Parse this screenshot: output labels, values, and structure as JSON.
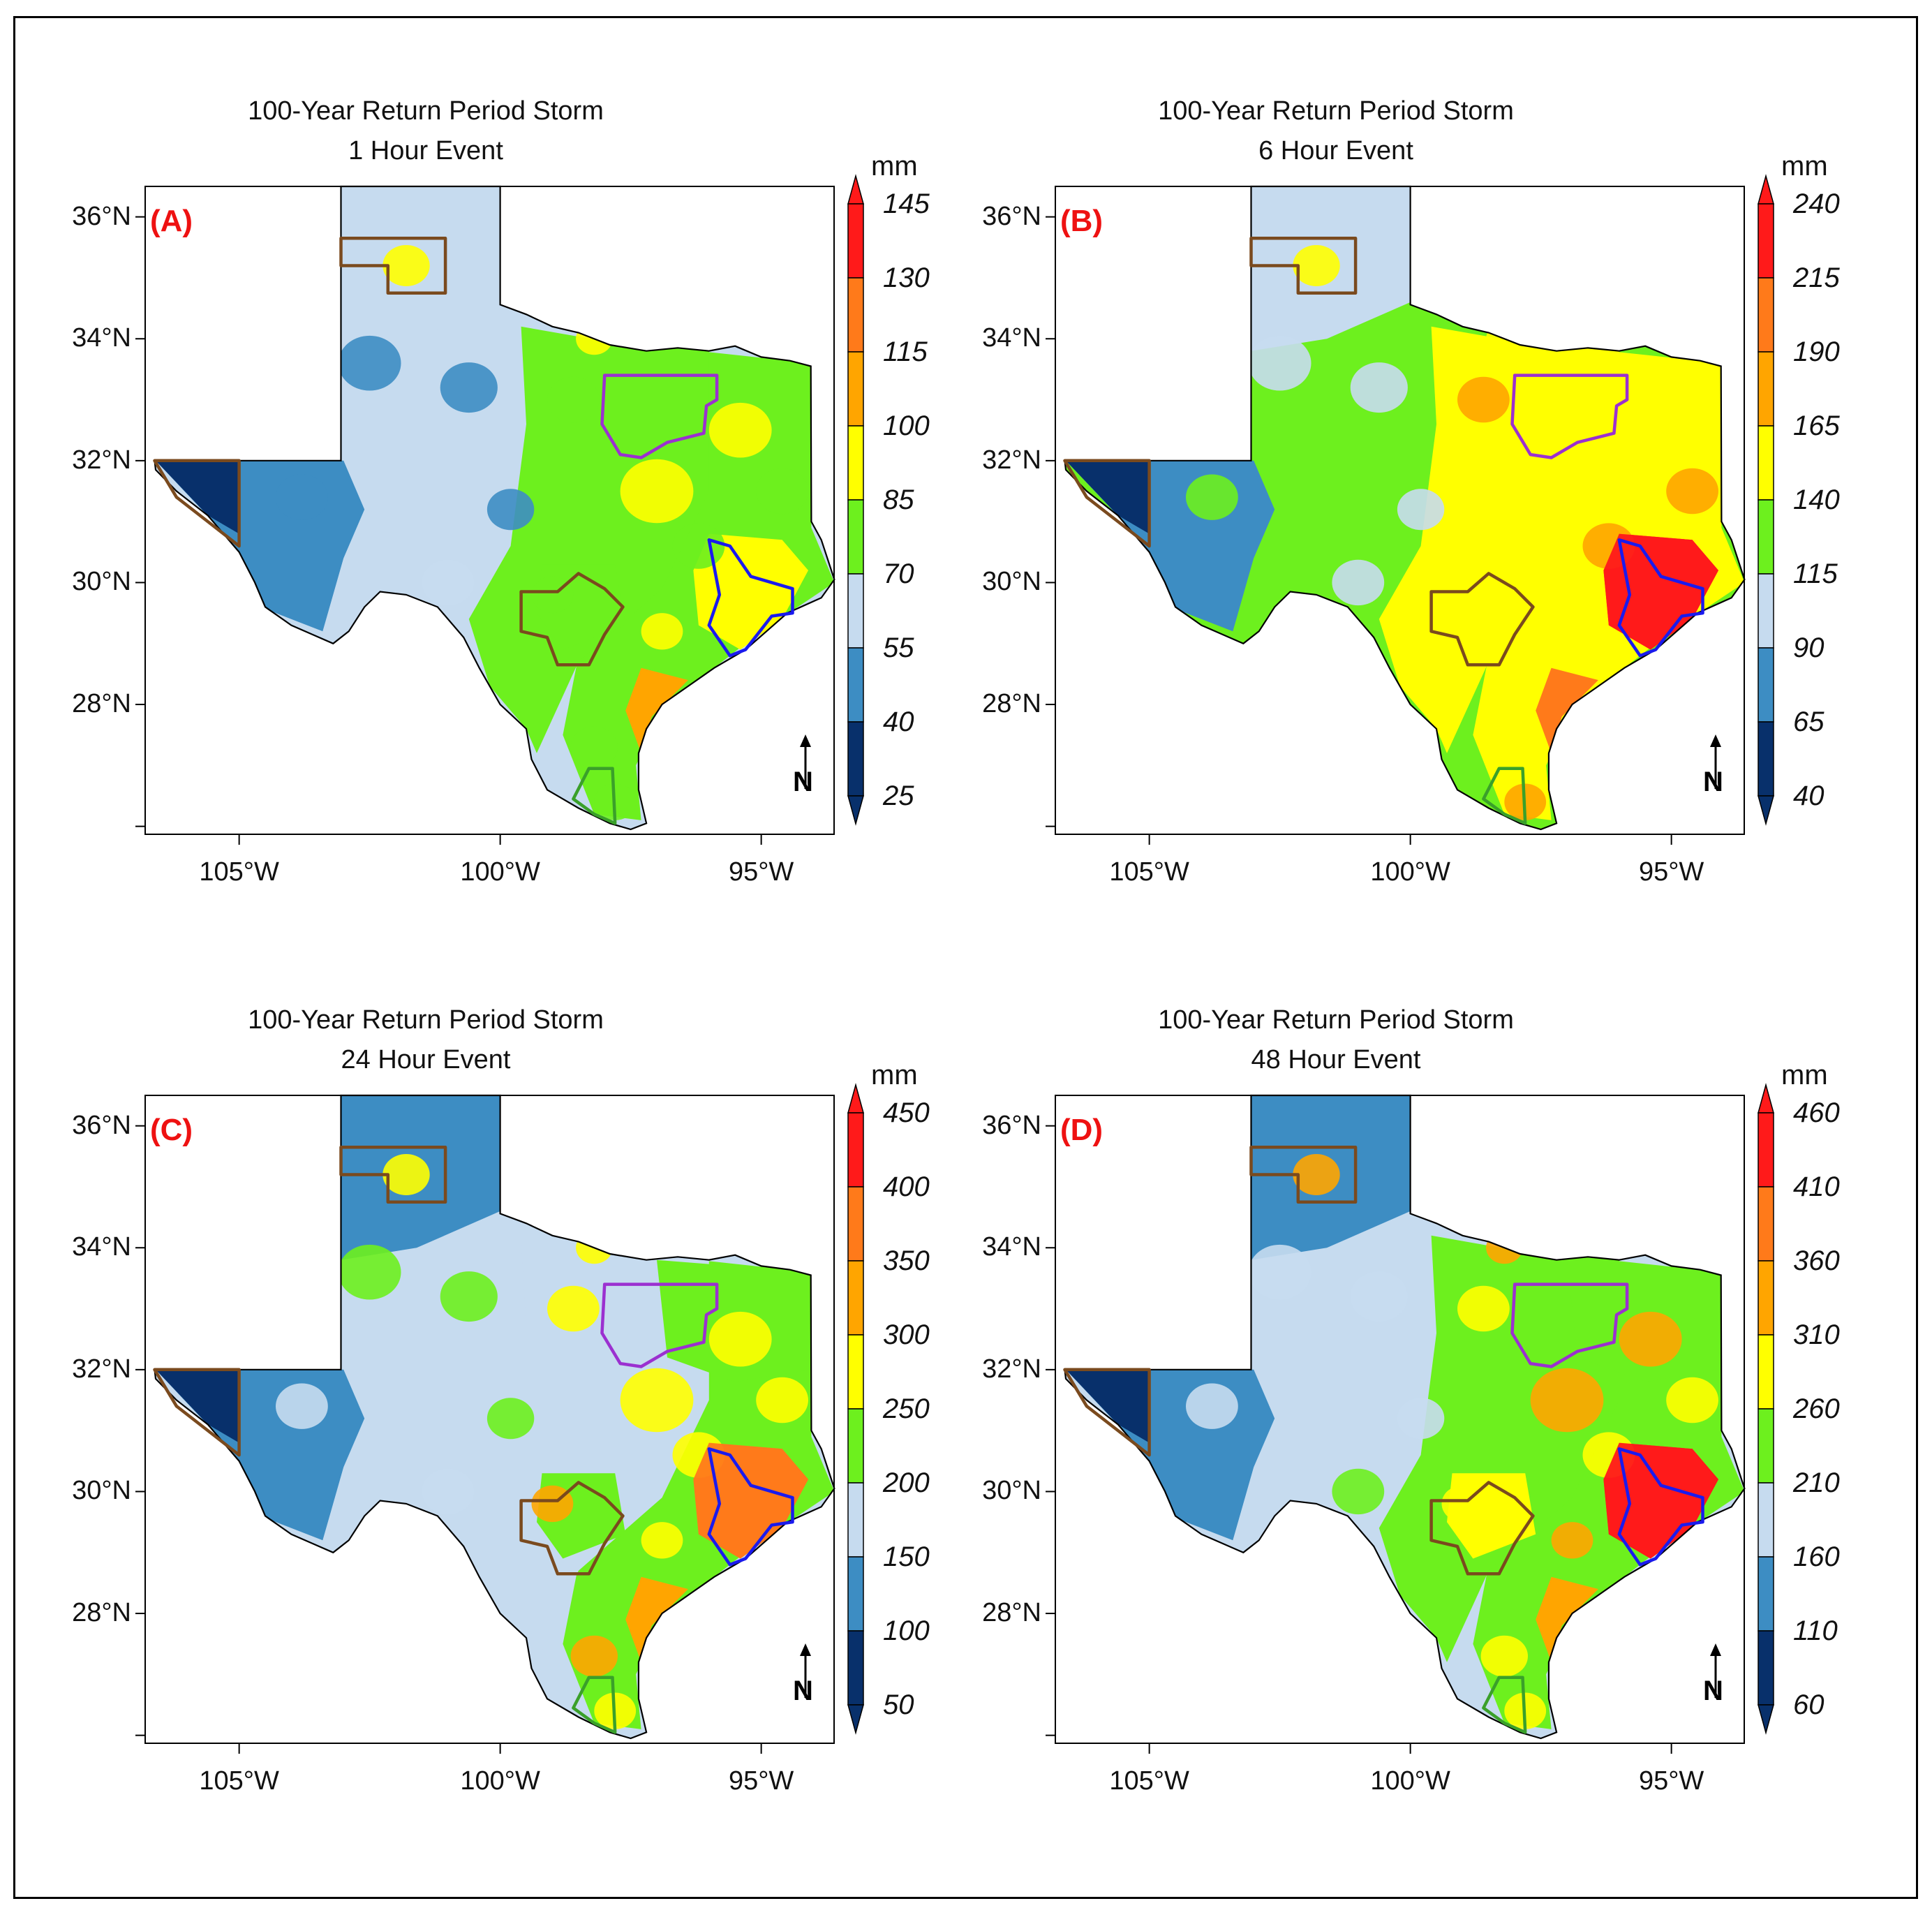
{
  "figure": {
    "common_title": "100-Year Return Period Storm",
    "units": "mm",
    "north_label": "N",
    "lat_labels": [
      "36°N",
      "34°N",
      "32°N",
      "30°N",
      "28°N"
    ],
    "lon_labels": [
      "105°W",
      "100°W",
      "95°W"
    ],
    "colors": {
      "c0": "#08306b",
      "c1": "#3d8dc3",
      "c2": "#c6dbef",
      "c3": "#6df01e",
      "c4": "#ffff00",
      "c5": "#ffa500",
      "c6": "#ff7a1a",
      "c7": "#ff1a1a",
      "region_brown": "#7a4a1e",
      "region_purple": "#9b30d0",
      "region_blue": "#1a1aee",
      "region_green": "#3aa02a"
    }
  },
  "panels": [
    {
      "id": "A",
      "label": "(A)",
      "event": "1 Hour Event",
      "colorbar": [
        "25",
        "40",
        "55",
        "70",
        "85",
        "100",
        "115",
        "130",
        "145"
      ]
    },
    {
      "id": "B",
      "label": "(B)",
      "event": "6 Hour Event",
      "colorbar": [
        "40",
        "65",
        "90",
        "115",
        "140",
        "165",
        "190",
        "215",
        "240"
      ]
    },
    {
      "id": "C",
      "label": "(C)",
      "event": "24 Hour Event",
      "colorbar": [
        "50",
        "100",
        "150",
        "200",
        "250",
        "300",
        "350",
        "400",
        "450"
      ]
    },
    {
      "id": "D",
      "label": "(D)",
      "event": "48 Hour Event",
      "colorbar": [
        "60",
        "110",
        "160",
        "210",
        "260",
        "310",
        "360",
        "410",
        "460"
      ]
    }
  ]
}
